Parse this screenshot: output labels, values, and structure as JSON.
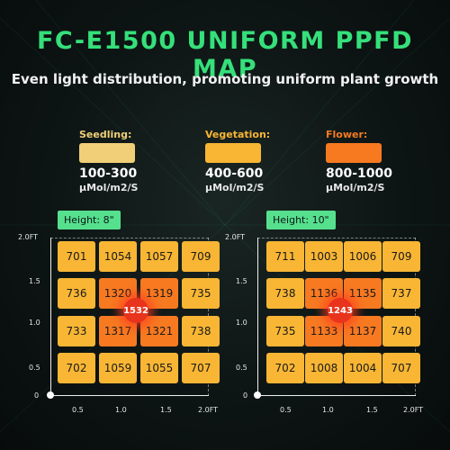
{
  "title": "FC-E1500 UNIFORM PPFD MAP",
  "subtitle": "Even light distribution, promoting uniform plant growth",
  "legend": [
    {
      "label": "Seedling:",
      "range": "100-300",
      "unit": "μMol/m2/S",
      "color": "#f0cf78"
    },
    {
      "label": "Vegetation:",
      "range": "400-600",
      "unit": "μMol/m2/S",
      "color": "#f8b634"
    },
    {
      "label": "Flower:",
      "range": "800-1000",
      "unit": "μMol/m2/S",
      "color": "#f77a21"
    }
  ],
  "maps": [
    {
      "height_label": "Height: 8\"",
      "y_ticks": [
        "2.0FT",
        "1.5",
        "1.0",
        "0.5",
        "0"
      ],
      "x_ticks": [
        "0.5",
        "1.0",
        "1.5",
        "2.0FT"
      ],
      "rows": [
        [
          "701",
          "1054",
          "1057",
          "709"
        ],
        [
          "736",
          "1320",
          "1319",
          "735"
        ],
        [
          "733",
          "1317",
          "1321",
          "738"
        ],
        [
          "702",
          "1059",
          "1055",
          "707"
        ]
      ],
      "center": "1532"
    },
    {
      "height_label": "Height: 10\"",
      "y_ticks": [
        "2.0FT",
        "1.5",
        "1.0",
        "0.5",
        "0"
      ],
      "x_ticks": [
        "0.5",
        "1.0",
        "1.5",
        "2.0FT"
      ],
      "rows": [
        [
          "711",
          "1003",
          "1006",
          "709"
        ],
        [
          "738",
          "1136",
          "1135",
          "737"
        ],
        [
          "735",
          "1133",
          "1137",
          "740"
        ],
        [
          "702",
          "1008",
          "1004",
          "707"
        ]
      ],
      "center": "1243"
    }
  ],
  "colors": {
    "accent": "#35e07a",
    "badge": "#56e08e",
    "vegetation": "#f8b634",
    "flower": "#f77a21",
    "peak": "#e8341c"
  }
}
